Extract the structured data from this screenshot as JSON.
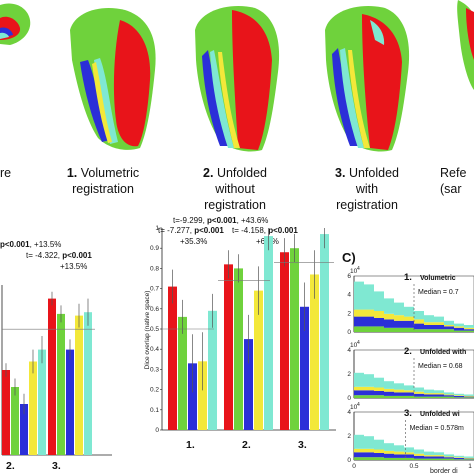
{
  "figure": {
    "captions": [
      {
        "num": "",
        "text": "re"
      },
      {
        "num": "1.",
        "text": "Volumetric",
        "text2": "registration"
      },
      {
        "num": "2.",
        "text": "Unfolded",
        "text2": "without",
        "text3": "registration"
      },
      {
        "num": "3.",
        "text": "Unfolded",
        "text2": "with",
        "text3": "registration"
      },
      {
        "num": "",
        "text": "Refe",
        "text2": "(sar"
      }
    ],
    "panel_c_label": "C)",
    "colors": {
      "red": "#e8141a",
      "green": "#6fd23c",
      "blue": "#2b2fd8",
      "yellow": "#f3e83a",
      "cyan": "#7fe8d2"
    }
  },
  "panel_a": {
    "stats": {
      "line1_pre": "p<0.001",
      "line1_post": ", +13.5%",
      "line2_t": "t= -4.322, ",
      "line2_p": "p<0.001",
      "line3": "+13.5%"
    },
    "xticks": [
      "2.",
      "3."
    ]
  },
  "panel_b": {
    "stats": {
      "line1_pre": "t=-9.299, ",
      "line1_p": "p<0.001",
      "line1_post": ", +43.6%",
      "line2_t": "t= -7.277, ",
      "line2_p": "p<0.001",
      "line3_t": "t= -4.158, ",
      "line3_p": "p<0.001",
      "line4a": "+35.3%",
      "line4b": "+6.1%"
    },
    "ylabel": "Dice overlap (native space)",
    "yticks": [
      "0",
      "0.1",
      "0.2",
      "0.3",
      "0.4",
      "0.5",
      "0.6",
      "0.7",
      "0.8",
      "0.9",
      "1"
    ],
    "xticks": [
      "1.",
      "2.",
      "3."
    ]
  },
  "panel_c": {
    "exponent": "10",
    "exp_power": "4",
    "rows": [
      {
        "num": "1.",
        "title": "Volumetric",
        "median": "Median = 0.7"
      },
      {
        "num": "2.",
        "title": "Unfolded with",
        "median": "Median = 0.68"
      },
      {
        "num": "3.",
        "title": "Unfolded wi",
        "median": "Median = 0.578m"
      }
    ],
    "row1_yticks": [
      "6",
      "4",
      "2",
      "0"
    ],
    "row_small_yticks": [
      "4",
      "2",
      "0"
    ],
    "xticks": [
      "0",
      "0.5",
      "1"
    ],
    "xlabel": "border di"
  },
  "chart_data": [
    {
      "type": "bar",
      "title": "",
      "categories": [
        "2.",
        "3."
      ],
      "ylim": [
        0,
        1
      ],
      "series": [
        {
          "values": [
            0.5,
            0.92
          ],
          "color": "#e8141a"
        },
        {
          "values": [
            0.4,
            0.83
          ],
          "color": "#6fd23c"
        },
        {
          "values": [
            0.3,
            0.62
          ],
          "color": "#2b2fd8"
        },
        {
          "values": [
            0.55,
            0.82
          ],
          "color": "#f3e83a"
        },
        {
          "values": [
            0.62,
            0.84
          ],
          "color": "#7fe8d2"
        }
      ]
    },
    {
      "type": "bar",
      "title": "",
      "ylabel": "Dice overlap (native space)",
      "categories": [
        "1.",
        "2.",
        "3."
      ],
      "ylim": [
        0,
        1
      ],
      "series": [
        {
          "values": [
            0.71,
            0.82,
            0.88
          ],
          "color": "#e8141a"
        },
        {
          "values": [
            0.56,
            0.8,
            0.9
          ],
          "color": "#6fd23c"
        },
        {
          "values": [
            0.33,
            0.45,
            0.61
          ],
          "color": "#2b2fd8"
        },
        {
          "values": [
            0.34,
            0.69,
            0.77
          ],
          "color": "#f3e83a"
        },
        {
          "values": [
            0.59,
            0.96,
            0.97
          ],
          "color": "#7fe8d2"
        }
      ],
      "reference_lines": [
        0.5,
        0.74,
        0.83
      ]
    }
  ]
}
